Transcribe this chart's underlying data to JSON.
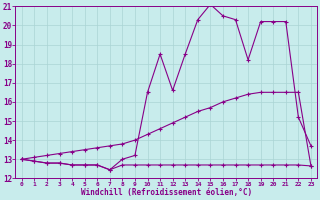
{
  "background_color": "#c8ecec",
  "grid_color": "#aad4d4",
  "line_color": "#880088",
  "xlabel": "Windchill (Refroidissement éolien,°C)",
  "xlim": [
    -0.5,
    23.5
  ],
  "ylim": [
    12,
    21
  ],
  "yticks": [
    12,
    13,
    14,
    15,
    16,
    17,
    18,
    19,
    20,
    21
  ],
  "xticks": [
    0,
    1,
    2,
    3,
    4,
    5,
    6,
    7,
    8,
    9,
    10,
    11,
    12,
    13,
    14,
    15,
    16,
    17,
    18,
    19,
    20,
    21,
    22,
    23
  ],
  "line1_x": [
    0,
    1,
    2,
    3,
    4,
    5,
    6,
    7,
    8,
    9,
    10,
    11,
    12,
    13,
    14,
    15,
    16,
    17,
    18,
    19,
    20,
    21,
    22,
    23
  ],
  "line1_y": [
    13.0,
    12.9,
    12.8,
    12.8,
    12.7,
    12.7,
    12.7,
    12.45,
    12.7,
    12.7,
    12.7,
    12.7,
    12.7,
    12.7,
    12.7,
    12.7,
    12.7,
    12.7,
    12.7,
    12.7,
    12.7,
    12.7,
    12.7,
    12.65
  ],
  "line2_x": [
    0,
    1,
    2,
    3,
    4,
    5,
    6,
    7,
    8,
    9,
    10,
    11,
    12,
    13,
    14,
    15,
    16,
    17,
    18,
    19,
    20,
    21,
    22,
    23
  ],
  "line2_y": [
    13.0,
    13.1,
    13.2,
    13.3,
    13.4,
    13.5,
    13.6,
    13.7,
    13.8,
    14.0,
    14.3,
    14.6,
    14.9,
    15.2,
    15.5,
    15.7,
    16.0,
    16.2,
    16.4,
    16.5,
    16.5,
    16.5,
    16.5,
    12.65
  ],
  "line3_x": [
    0,
    1,
    2,
    3,
    4,
    5,
    6,
    7,
    8,
    9,
    10,
    11,
    12,
    13,
    14,
    15,
    16,
    17,
    18,
    19,
    20,
    21,
    22,
    23
  ],
  "line3_y": [
    13.0,
    12.9,
    12.8,
    12.8,
    12.7,
    12.7,
    12.7,
    12.45,
    13.0,
    13.2,
    16.5,
    18.5,
    16.6,
    18.5,
    20.3,
    21.1,
    20.5,
    20.3,
    18.2,
    20.2,
    20.2,
    20.2,
    15.2,
    13.7
  ]
}
